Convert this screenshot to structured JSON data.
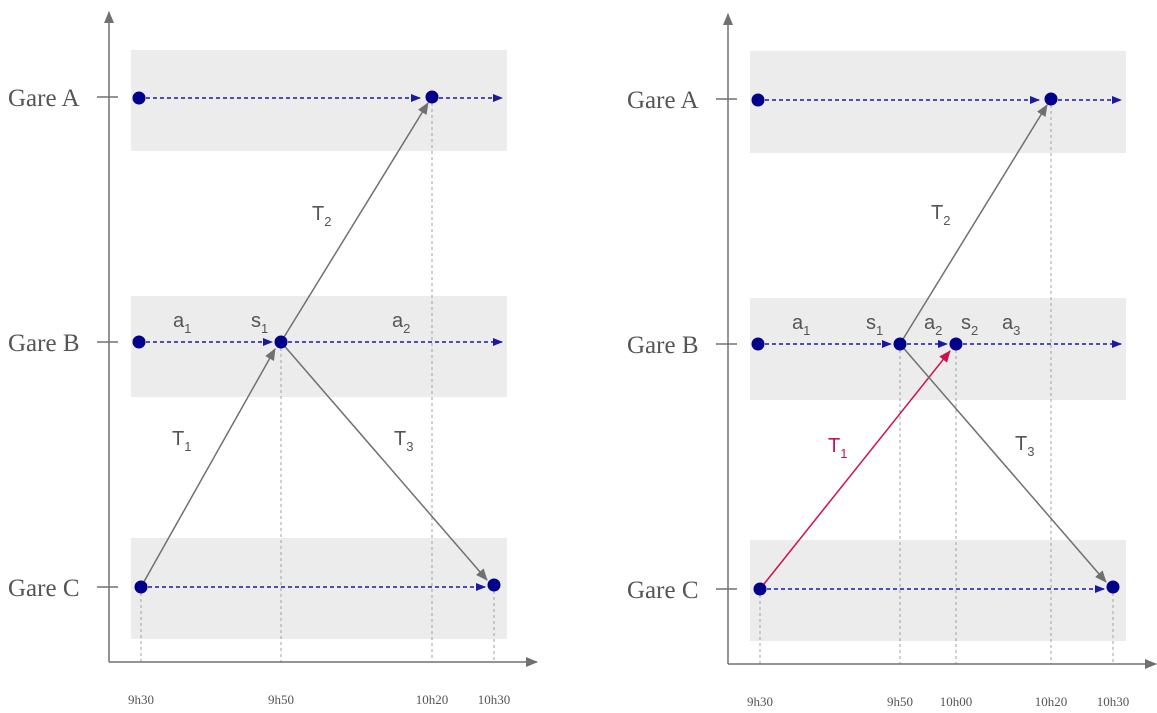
{
  "colors": {
    "band": "#ececec",
    "axis": "#707070",
    "dotted": "#1a1aa0",
    "node": "#00008b",
    "arrow": "#707070",
    "red": "#cc1155",
    "guide": "#a0a0a0"
  },
  "diagrams": [
    {
      "stations": [
        {
          "label": "Gare A"
        },
        {
          "label": "Gare B"
        },
        {
          "label": "Gare C"
        }
      ],
      "times": [
        "9h30",
        "9h50",
        "10h20",
        "10h30"
      ],
      "arc_labels": [
        {
          "base": "a",
          "sub": "1"
        },
        {
          "base": "s",
          "sub": "1"
        },
        {
          "base": "a",
          "sub": "2"
        },
        {
          "base": "T",
          "sub": "2"
        },
        {
          "base": "T",
          "sub": "1"
        },
        {
          "base": "T",
          "sub": "3"
        }
      ]
    },
    {
      "stations": [
        {
          "label": "Gare A"
        },
        {
          "label": "Gare B"
        },
        {
          "label": "Gare C"
        }
      ],
      "times": [
        "9h30",
        "9h50",
        "10h00",
        "10h20",
        "10h30"
      ],
      "arc_labels": [
        {
          "base": "a",
          "sub": "1"
        },
        {
          "base": "s",
          "sub": "1"
        },
        {
          "base": "a",
          "sub": "2"
        },
        {
          "base": "s",
          "sub": "2"
        },
        {
          "base": "a",
          "sub": "3"
        },
        {
          "base": "T",
          "sub": "2"
        },
        {
          "base": "T",
          "sub": "1"
        },
        {
          "base": "T",
          "sub": "3"
        }
      ]
    }
  ]
}
